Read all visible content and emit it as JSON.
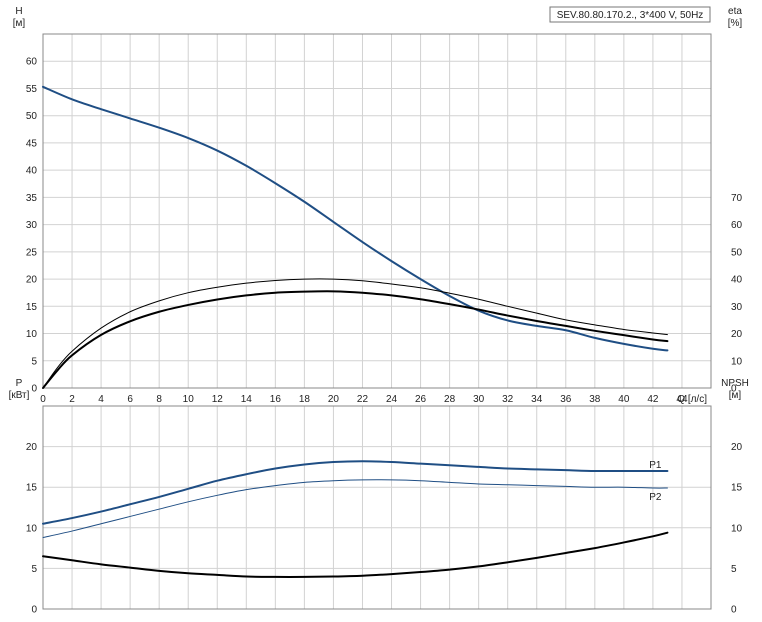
{
  "chart_data": [
    {
      "type": "line",
      "title": "SEV.80.80.170.2., 3*400 V, 50Hz",
      "x_axis": {
        "label": "Q [л/с]",
        "range": [
          0,
          46
        ],
        "ticks": [
          0,
          2,
          4,
          6,
          8,
          10,
          12,
          14,
          16,
          18,
          20,
          22,
          24,
          26,
          28,
          30,
          32,
          34,
          36,
          38,
          40,
          42,
          44
        ],
        "grid": true
      },
      "y_left": {
        "label_line1": "H",
        "label_line2": "[м]",
        "range": [
          0,
          65
        ],
        "ticks": [
          0,
          5,
          10,
          15,
          20,
          25,
          30,
          35,
          40,
          45,
          50,
          55,
          60
        ],
        "grid": true
      },
      "y_right": {
        "label_line1": "eta",
        "label_line2": "[%]",
        "range": [
          0,
          130
        ],
        "ticks": [
          0,
          10,
          20,
          30,
          40,
          50,
          60,
          70
        ]
      },
      "series": [
        {
          "axis": "left",
          "color": "#1f4e84",
          "width": 2,
          "x": [
            0,
            2,
            4,
            6,
            8,
            10,
            12,
            14,
            16,
            18,
            20,
            22,
            24,
            26,
            28,
            30,
            32,
            34,
            36,
            38,
            40,
            42,
            43
          ],
          "y": [
            55.3,
            53.0,
            51.2,
            49.5,
            47.8,
            45.9,
            43.6,
            40.8,
            37.6,
            34.2,
            30.5,
            26.8,
            23.3,
            20.0,
            16.9,
            14.2,
            12.4,
            11.4,
            10.6,
            9.2,
            8.1,
            7.2,
            6.9
          ]
        },
        {
          "axis": "right",
          "color": "#000000",
          "width": 1,
          "x": [
            0,
            1,
            2,
            4,
            6,
            8,
            10,
            12,
            14,
            16,
            18,
            20,
            22,
            24,
            26,
            28,
            30,
            32,
            34,
            36,
            38,
            40,
            42,
            43
          ],
          "y": [
            0,
            7.5,
            13.5,
            22.0,
            28.0,
            32.0,
            35.0,
            37.0,
            38.5,
            39.5,
            40.0,
            40.0,
            39.4,
            38.2,
            36.8,
            34.8,
            32.6,
            30.0,
            27.5,
            25.0,
            23.2,
            21.5,
            20.2,
            19.6
          ]
        },
        {
          "axis": "right",
          "color": "#000000",
          "width": 2,
          "x": [
            0,
            1,
            2,
            4,
            6,
            8,
            10,
            12,
            14,
            16,
            18,
            20,
            22,
            24,
            26,
            28,
            30,
            32,
            34,
            36,
            38,
            40,
            42,
            43
          ],
          "y": [
            0,
            6.5,
            12.0,
            19.5,
            24.5,
            28.0,
            30.5,
            32.5,
            34.0,
            35.0,
            35.4,
            35.5,
            35.0,
            34.0,
            32.6,
            30.8,
            28.8,
            26.6,
            24.6,
            22.8,
            21.0,
            19.4,
            17.8,
            17.2
          ]
        }
      ]
    },
    {
      "type": "line",
      "x_axis": {
        "range": [
          0,
          46
        ],
        "ticks": [
          0,
          2,
          4,
          6,
          8,
          10,
          12,
          14,
          16,
          18,
          20,
          22,
          24,
          26,
          28,
          30,
          32,
          34,
          36,
          38,
          40,
          42,
          44
        ],
        "grid": true
      },
      "y_left": {
        "label_line1": "P",
        "label_line2": "[кВт]",
        "range": [
          0,
          25
        ],
        "ticks": [
          0,
          5,
          10,
          15,
          20
        ],
        "grid": true
      },
      "y_right": {
        "label_line1": "NPSH",
        "label_line2": "[м]",
        "range": [
          0,
          25
        ],
        "ticks": [
          0,
          5,
          10,
          15,
          20
        ]
      },
      "series": [
        {
          "name": "P1",
          "axis": "left",
          "color": "#1f4e84",
          "width": 2,
          "x": [
            0,
            2,
            4,
            6,
            8,
            10,
            12,
            14,
            16,
            18,
            20,
            22,
            24,
            26,
            28,
            30,
            32,
            34,
            36,
            38,
            40,
            42,
            43
          ],
          "y": [
            10.5,
            11.2,
            12.0,
            12.9,
            13.8,
            14.8,
            15.8,
            16.6,
            17.3,
            17.8,
            18.1,
            18.2,
            18.1,
            17.9,
            17.7,
            17.5,
            17.3,
            17.2,
            17.1,
            17.0,
            17.0,
            17.0,
            17.0
          ]
        },
        {
          "name": "P2",
          "axis": "left",
          "color": "#1f4e84",
          "width": 1,
          "x": [
            0,
            2,
            4,
            6,
            8,
            10,
            12,
            14,
            16,
            18,
            20,
            22,
            24,
            26,
            28,
            30,
            32,
            34,
            36,
            38,
            40,
            42,
            43
          ],
          "y": [
            8.8,
            9.6,
            10.5,
            11.4,
            12.3,
            13.2,
            14.0,
            14.7,
            15.2,
            15.6,
            15.8,
            15.9,
            15.9,
            15.8,
            15.6,
            15.4,
            15.3,
            15.2,
            15.1,
            15.0,
            15.0,
            14.9,
            14.9
          ]
        },
        {
          "axis": "right",
          "color": "#000000",
          "width": 2,
          "x": [
            0,
            2,
            4,
            6,
            8,
            10,
            12,
            14,
            16,
            18,
            20,
            22,
            24,
            26,
            28,
            30,
            32,
            34,
            36,
            38,
            40,
            42,
            43
          ],
          "y": [
            6.5,
            6.0,
            5.5,
            5.1,
            4.7,
            4.4,
            4.2,
            4.0,
            3.95,
            3.95,
            4.0,
            4.1,
            4.3,
            4.55,
            4.85,
            5.25,
            5.75,
            6.3,
            6.9,
            7.5,
            8.2,
            8.95,
            9.4
          ]
        }
      ]
    }
  ]
}
